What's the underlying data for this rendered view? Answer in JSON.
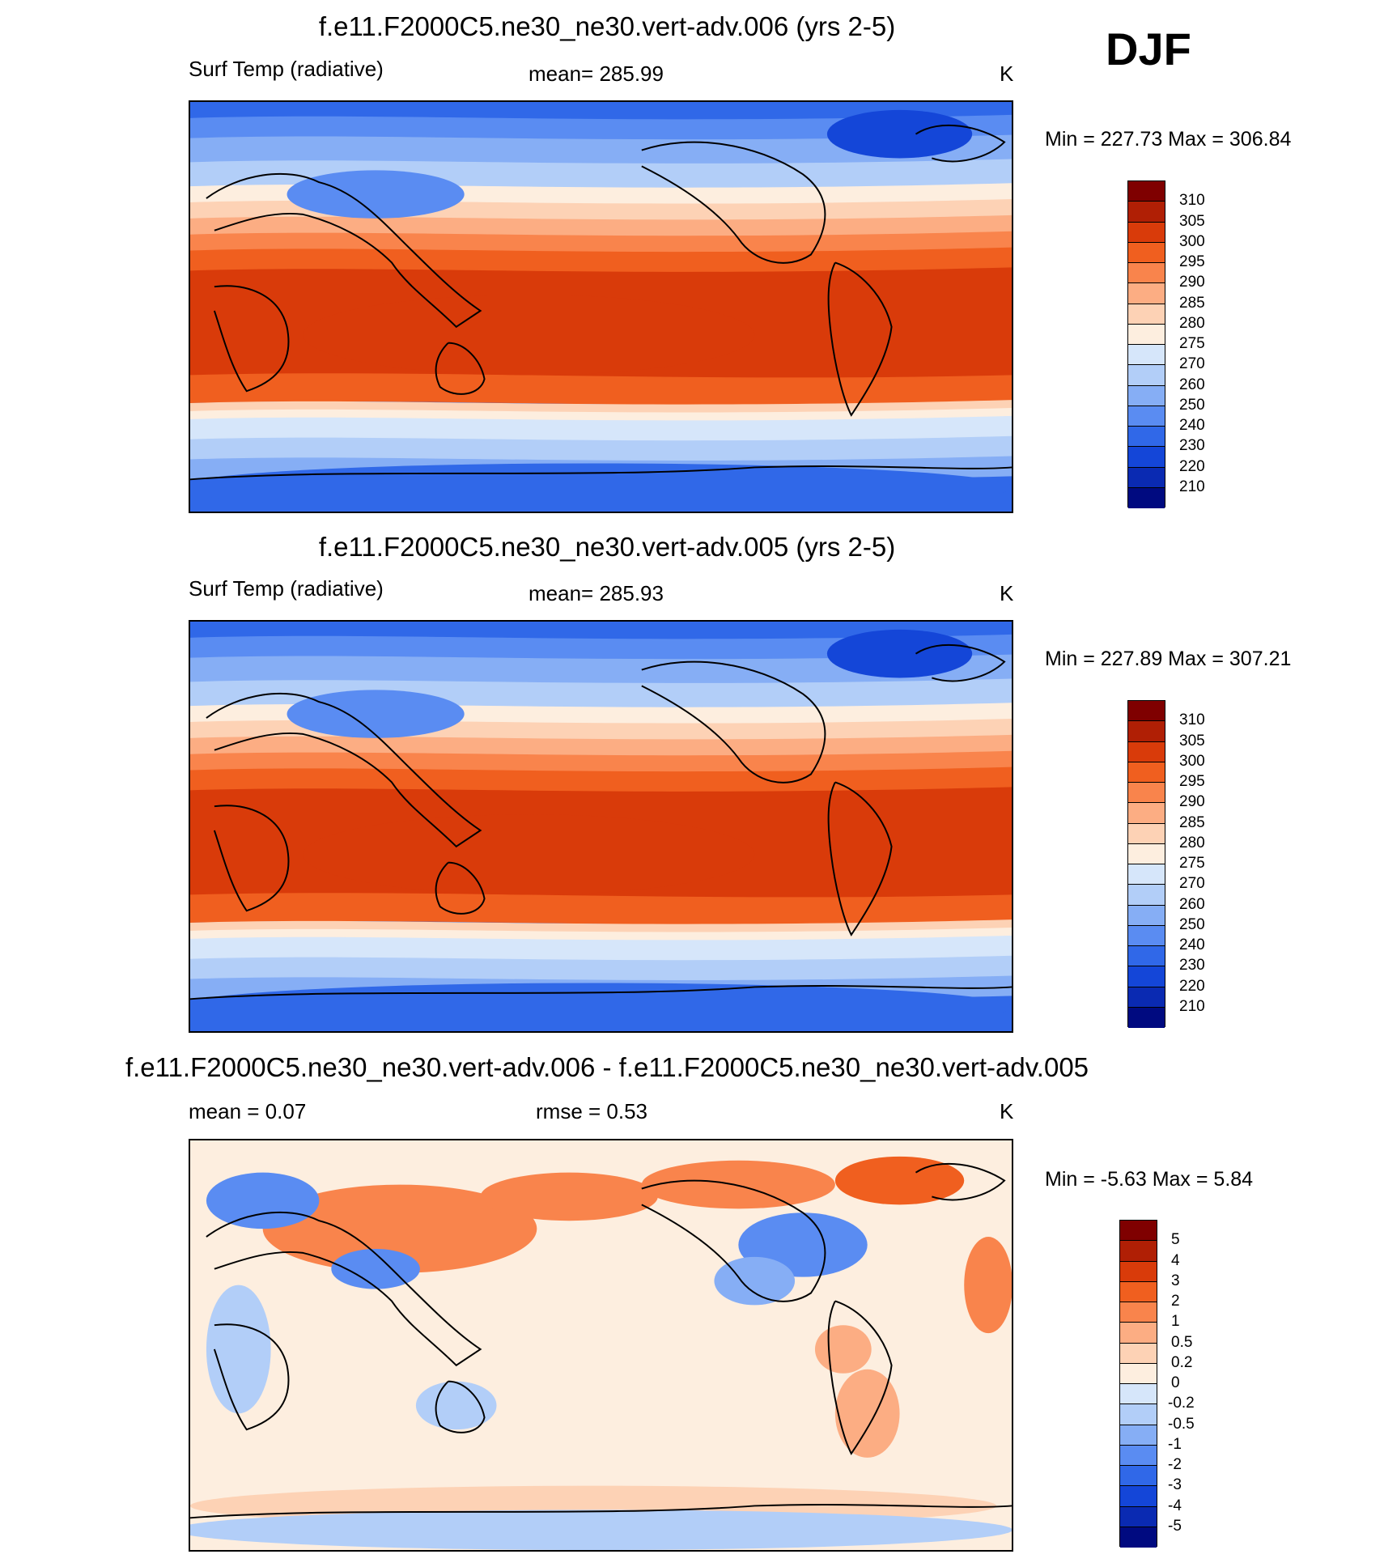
{
  "season": "DJF",
  "panels": [
    {
      "title": "f.e11.F2000C5.ne30_ne30.vert-adv.006 (yrs 2-5)",
      "left_label": "Surf Temp (radiative)",
      "center_label": "mean= 285.99",
      "right_label": "K",
      "minmax": "Min = 227.73 Max = 306.84",
      "palette": "abs"
    },
    {
      "title": "f.e11.F2000C5.ne30_ne30.vert-adv.005 (yrs 2-5)",
      "left_label": "Surf Temp (radiative)",
      "center_label": "mean= 285.93",
      "right_label": "K",
      "minmax": "Min = 227.89 Max = 307.21",
      "palette": "abs"
    },
    {
      "title": "f.e11.F2000C5.ne30_ne30.vert-adv.006 - f.e11.F2000C5.ne30_ne30.vert-adv.005",
      "left_label": "mean =   0.07",
      "center_label": "rmse =   0.53",
      "right_label": "K",
      "minmax": "Min =  -5.63 Max =   5.84",
      "palette": "diff"
    }
  ],
  "chart_data": [
    {
      "type": "heatmap",
      "title": "f.e11.F2000C5.ne30_ne30.vert-adv.006 (yrs 2-5)",
      "variable": "Surf Temp (radiative)",
      "units": "K",
      "mean": 285.99,
      "min": 227.73,
      "max": 306.84,
      "contour_levels": [
        310,
        305,
        300,
        295,
        290,
        285,
        280,
        275,
        270,
        260,
        250,
        240,
        230,
        220,
        210
      ],
      "colors": [
        "#7f0000",
        "#b01f05",
        "#d93b0a",
        "#f05f1f",
        "#f9844c",
        "#fcad83",
        "#fdd2b5",
        "#fdeedf",
        "#d6e6fa",
        "#b2cef8",
        "#86aef5",
        "#5a8cf2",
        "#3068e8",
        "#1446d8",
        "#0a2ab2",
        "#000a80"
      ]
    },
    {
      "type": "heatmap",
      "title": "f.e11.F2000C5.ne30_ne30.vert-adv.005 (yrs 2-5)",
      "variable": "Surf Temp (radiative)",
      "units": "K",
      "mean": 285.93,
      "min": 227.89,
      "max": 307.21,
      "contour_levels": [
        310,
        305,
        300,
        295,
        290,
        285,
        280,
        275,
        270,
        260,
        250,
        240,
        230,
        220,
        210
      ],
      "colors": [
        "#7f0000",
        "#b01f05",
        "#d93b0a",
        "#f05f1f",
        "#f9844c",
        "#fcad83",
        "#fdd2b5",
        "#fdeedf",
        "#d6e6fa",
        "#b2cef8",
        "#86aef5",
        "#5a8cf2",
        "#3068e8",
        "#1446d8",
        "#0a2ab2",
        "#000a80"
      ]
    },
    {
      "type": "heatmap",
      "title": "f.e11.F2000C5.ne30_ne30.vert-adv.006 - f.e11.F2000C5.ne30_ne30.vert-adv.005",
      "variable": "difference",
      "units": "K",
      "mean": 0.07,
      "rmse": 0.53,
      "min": -5.63,
      "max": 5.84,
      "contour_levels": [
        "5",
        "4",
        "3",
        "2",
        "1",
        "0.5",
        "0.2",
        "0",
        "-0.2",
        "-0.5",
        "-1",
        "-2",
        "-3",
        "-4",
        "-5"
      ],
      "colors": [
        "#7f0000",
        "#b01f05",
        "#d93b0a",
        "#f05f1f",
        "#f9844c",
        "#fcad83",
        "#fdd2b5",
        "#fdeedf",
        "#d6e6fa",
        "#b2cef8",
        "#86aef5",
        "#5a8cf2",
        "#3068e8",
        "#1446d8",
        "#0a2ab2",
        "#000a80"
      ]
    }
  ]
}
